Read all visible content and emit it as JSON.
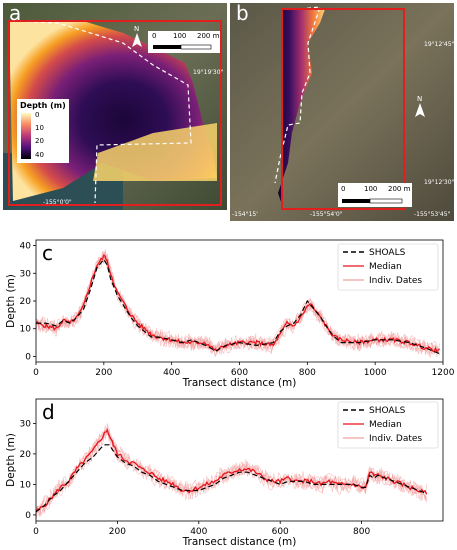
{
  "panels": {
    "a": {
      "letter": "a",
      "colorbar_title": "Depth (m)",
      "colorbar_ticks": [
        "0",
        "10",
        "20",
        "40"
      ],
      "scalebar_labels": [
        "0",
        "100",
        "200 m"
      ],
      "north": "N",
      "coord_top": "19°19'30\"",
      "coord_bottom": "-155°0'0\""
    },
    "b": {
      "letter": "b",
      "scalebar_labels": [
        "0",
        "100",
        "200 m"
      ],
      "north": "N",
      "coord_top": "19°12'45\"",
      "coord_mid": "19°12'30\"",
      "coord_bottom_left": "-154°15'",
      "coord_bottom_mid": "-155°54'0\"",
      "coord_bottom_right": "-155°53'45\""
    }
  },
  "chart_data": [
    {
      "panel": "c",
      "type": "line",
      "xlabel": "Transect distance (m)",
      "ylabel": "Depth (m)",
      "xlim": [
        0,
        1200
      ],
      "ylim": [
        -2,
        42
      ],
      "xticks": [
        0,
        200,
        400,
        600,
        800,
        1000,
        1200
      ],
      "yticks": [
        0,
        10,
        20,
        30,
        40
      ],
      "legend_position": "top-right",
      "series": [
        {
          "name": "SHOALS",
          "color": "#000000",
          "style": "dashed",
          "x": [
            0,
            30,
            60,
            80,
            100,
            120,
            140,
            160,
            180,
            200,
            210,
            220,
            240,
            260,
            280,
            300,
            320,
            340,
            360,
            400,
            430,
            460,
            500,
            530,
            560,
            600,
            650,
            700,
            720,
            740,
            760,
            780,
            800,
            820,
            840,
            860,
            880,
            900,
            950,
            1000,
            1050,
            1100,
            1150,
            1190
          ],
          "y": [
            12,
            12,
            11,
            13,
            12,
            14,
            17,
            24,
            32,
            35,
            33,
            28,
            22,
            18,
            14,
            11,
            9,
            7,
            7,
            6,
            5,
            6,
            4,
            2,
            4,
            5,
            4,
            5,
            9,
            11,
            12,
            15,
            20,
            17,
            14,
            10,
            7,
            5,
            5,
            6,
            6,
            5,
            3,
            1
          ]
        },
        {
          "name": "Median",
          "color": "#e8141c",
          "style": "solid",
          "x": [
            0,
            30,
            60,
            80,
            100,
            120,
            140,
            160,
            180,
            200,
            205,
            210,
            220,
            240,
            260,
            280,
            300,
            320,
            340,
            360,
            400,
            430,
            460,
            500,
            530,
            560,
            600,
            650,
            700,
            720,
            740,
            760,
            780,
            800,
            810,
            820,
            840,
            860,
            880,
            900,
            950,
            1000,
            1050,
            1100,
            1150,
            1190
          ],
          "y": [
            12,
            11,
            10,
            13,
            12,
            14,
            18,
            26,
            33,
            36,
            36,
            34,
            30,
            23,
            19,
            15,
            12,
            10,
            8,
            7,
            6,
            5,
            5,
            5,
            2,
            4,
            5,
            5,
            4,
            8,
            12,
            11,
            14,
            18,
            19,
            17,
            14,
            10,
            7,
            6,
            5,
            6,
            6,
            5,
            3,
            2
          ]
        },
        {
          "name": "Indiv. Dates",
          "color": "#f2a0a0",
          "style": "solid",
          "x": [],
          "y": []
        }
      ]
    },
    {
      "panel": "d",
      "type": "line",
      "xlabel": "Transect distance (m)",
      "ylabel": "Depth (m)",
      "xlim": [
        0,
        1000
      ],
      "ylim": [
        -2,
        38
      ],
      "xticks": [
        0,
        200,
        400,
        600,
        800
      ],
      "yticks": [
        0,
        10,
        20,
        30
      ],
      "legend_position": "top-right",
      "series": [
        {
          "name": "SHOALS",
          "color": "#000000",
          "style": "dashed",
          "x": [
            0,
            20,
            40,
            60,
            80,
            100,
            120,
            140,
            160,
            170,
            180,
            190,
            200,
            220,
            240,
            260,
            280,
            300,
            320,
            340,
            360,
            380,
            400,
            420,
            440,
            460,
            480,
            500,
            520,
            540,
            560,
            580,
            600,
            620,
            640,
            660,
            680,
            700,
            720,
            740,
            760,
            780,
            800,
            810,
            820,
            830,
            840,
            860,
            880,
            900,
            920,
            940,
            960
          ],
          "y": [
            1,
            3,
            6,
            8,
            11,
            14,
            17,
            19,
            22,
            23,
            23,
            21,
            19,
            17,
            16,
            14,
            13,
            11,
            10,
            9,
            8,
            8,
            8,
            9,
            10,
            12,
            13,
            14,
            14,
            13,
            12,
            11,
            10,
            11,
            11,
            11,
            10,
            10,
            10,
            10,
            10,
            10,
            9,
            9,
            13,
            12,
            13,
            12,
            11,
            10,
            9,
            8,
            7
          ]
        },
        {
          "name": "Median",
          "color": "#e8141c",
          "style": "solid",
          "x": [
            0,
            20,
            40,
            60,
            80,
            100,
            120,
            140,
            160,
            170,
            175,
            180,
            190,
            200,
            220,
            240,
            260,
            280,
            300,
            320,
            340,
            360,
            380,
            400,
            420,
            440,
            460,
            480,
            500,
            520,
            540,
            560,
            580,
            600,
            620,
            640,
            660,
            680,
            700,
            720,
            740,
            760,
            780,
            800,
            810,
            820,
            830,
            840,
            860,
            880,
            900,
            920,
            940,
            960
          ],
          "y": [
            1,
            3,
            6,
            9,
            11,
            15,
            18,
            21,
            25,
            27,
            28,
            26,
            23,
            20,
            18,
            17,
            15,
            14,
            12,
            11,
            10,
            8,
            8,
            9,
            10,
            11,
            13,
            14,
            15,
            15,
            14,
            12,
            11,
            11,
            12,
            11,
            11,
            11,
            10,
            11,
            10,
            10,
            10,
            9,
            9,
            14,
            13,
            13,
            12,
            11,
            10,
            9,
            8,
            7
          ]
        },
        {
          "name": "Indiv. Dates",
          "color": "#f2a0a0",
          "style": "solid",
          "x": [],
          "y": []
        }
      ]
    }
  ],
  "labels": {
    "c": "c",
    "d": "d"
  }
}
